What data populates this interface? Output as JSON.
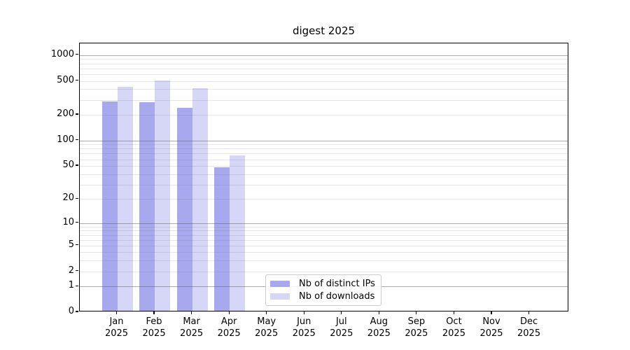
{
  "title": "digest 2025",
  "chart_data": {
    "type": "bar",
    "title": "digest 2025",
    "y_scale": "log1p",
    "categories": [
      "Jan 2025",
      "Feb 2025",
      "Mar 2025",
      "Apr 2025",
      "May 2025",
      "Jun 2025",
      "Jul 2025",
      "Aug 2025",
      "Sep 2025",
      "Oct 2025",
      "Nov 2025",
      "Dec 2025"
    ],
    "series": [
      {
        "name": "Nb of distinct IPs",
        "color": "#a8a8ee",
        "values": [
          275,
          270,
          233,
          46,
          0,
          0,
          0,
          0,
          0,
          0,
          0,
          0
        ]
      },
      {
        "name": "Nb of downloads",
        "color": "#d6d6f6",
        "values": [
          410,
          490,
          398,
          64,
          0,
          0,
          0,
          0,
          0,
          0,
          0,
          0
        ]
      }
    ],
    "y_ticks": [
      0,
      1,
      2,
      5,
      10,
      20,
      50,
      100,
      200,
      500,
      1000
    ],
    "y_major_gridlines": [
      1,
      10,
      100,
      1000
    ],
    "y_minor_gridlines": [
      2,
      3,
      4,
      5,
      6,
      7,
      8,
      9,
      20,
      30,
      40,
      50,
      60,
      70,
      80,
      90,
      200,
      300,
      400,
      500,
      600,
      700,
      800,
      900
    ],
    "ylim": [
      0,
      1370
    ],
    "legend_position": "lower center",
    "grid": "on"
  }
}
